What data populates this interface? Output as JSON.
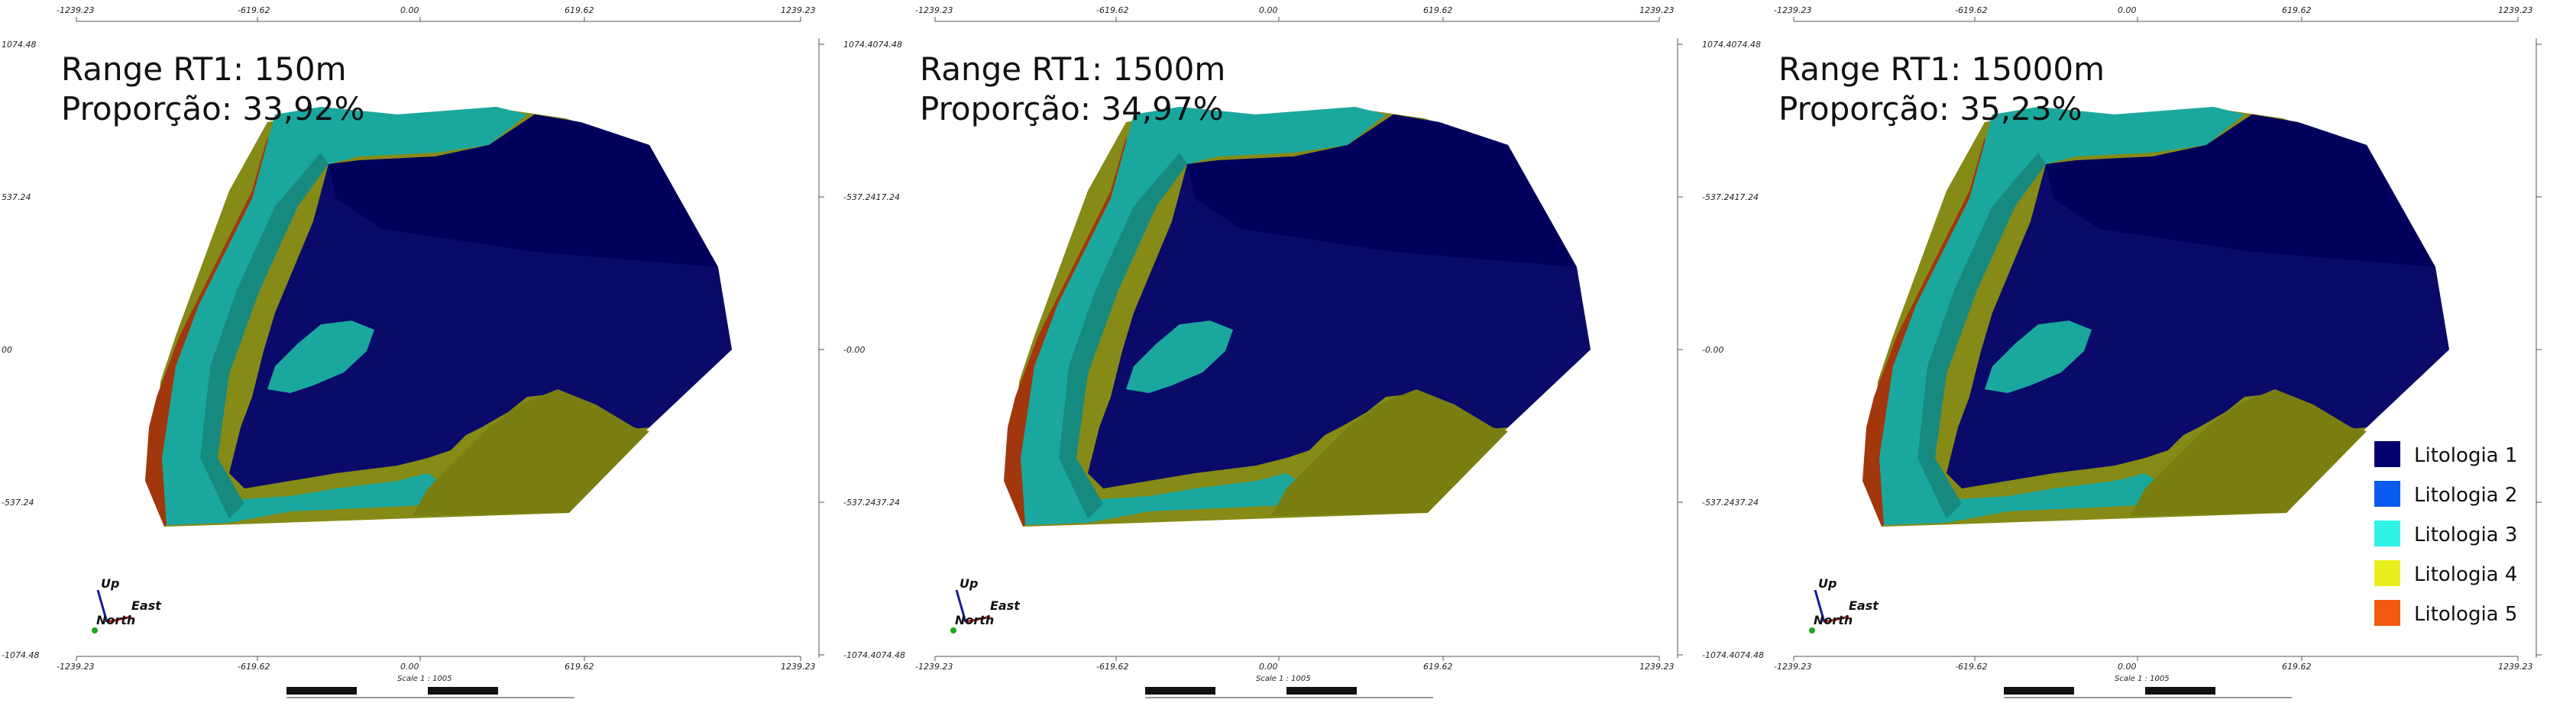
{
  "axis_ticks": {
    "x": [
      "-1239.23",
      "-619.62",
      "0.00",
      "619.62",
      "1239.23"
    ],
    "y_left": [
      "1074.48",
      "537.24",
      "00",
      "-537.24",
      "-1074.48"
    ],
    "y_right_first": [
      "1074.4074.48",
      "-537.2417.24",
      "-0.00",
      "-537.2437.24",
      "-1074.4074.48"
    ]
  },
  "panels": [
    {
      "title": "Range RT1: 150m",
      "subtitle": "Proporção: 33,92%",
      "scale_label": "Scale 1 : 1005"
    },
    {
      "title": "Range RT1: 1500m",
      "subtitle": "Proporção: 34,97%",
      "scale_label": "Scale 1 : 1005"
    },
    {
      "title": "Range RT1: 15000m",
      "subtitle": "Proporção: 35,23%",
      "scale_label": "Scale 1 : 1005"
    }
  ],
  "compass": {
    "up": "Up",
    "east": "East",
    "north": "North"
  },
  "legend": [
    {
      "label": "Litologia 1",
      "color": "#00006e"
    },
    {
      "label": "Litologia 2",
      "color": "#0a5cf0"
    },
    {
      "label": "Litologia 3",
      "color": "#2ef3e6"
    },
    {
      "label": "Litologia 4",
      "color": "#e9f01e"
    },
    {
      "label": "Litologia 5",
      "color": "#f25a12"
    }
  ],
  "colors": {
    "navy": "#0a0a6b",
    "navy_dark": "#00005c",
    "teal": "#1aa89e",
    "teal_dark": "#178a80",
    "olive": "#868a16",
    "olive_dark": "#7a7e10",
    "rust": "#a2360c"
  }
}
